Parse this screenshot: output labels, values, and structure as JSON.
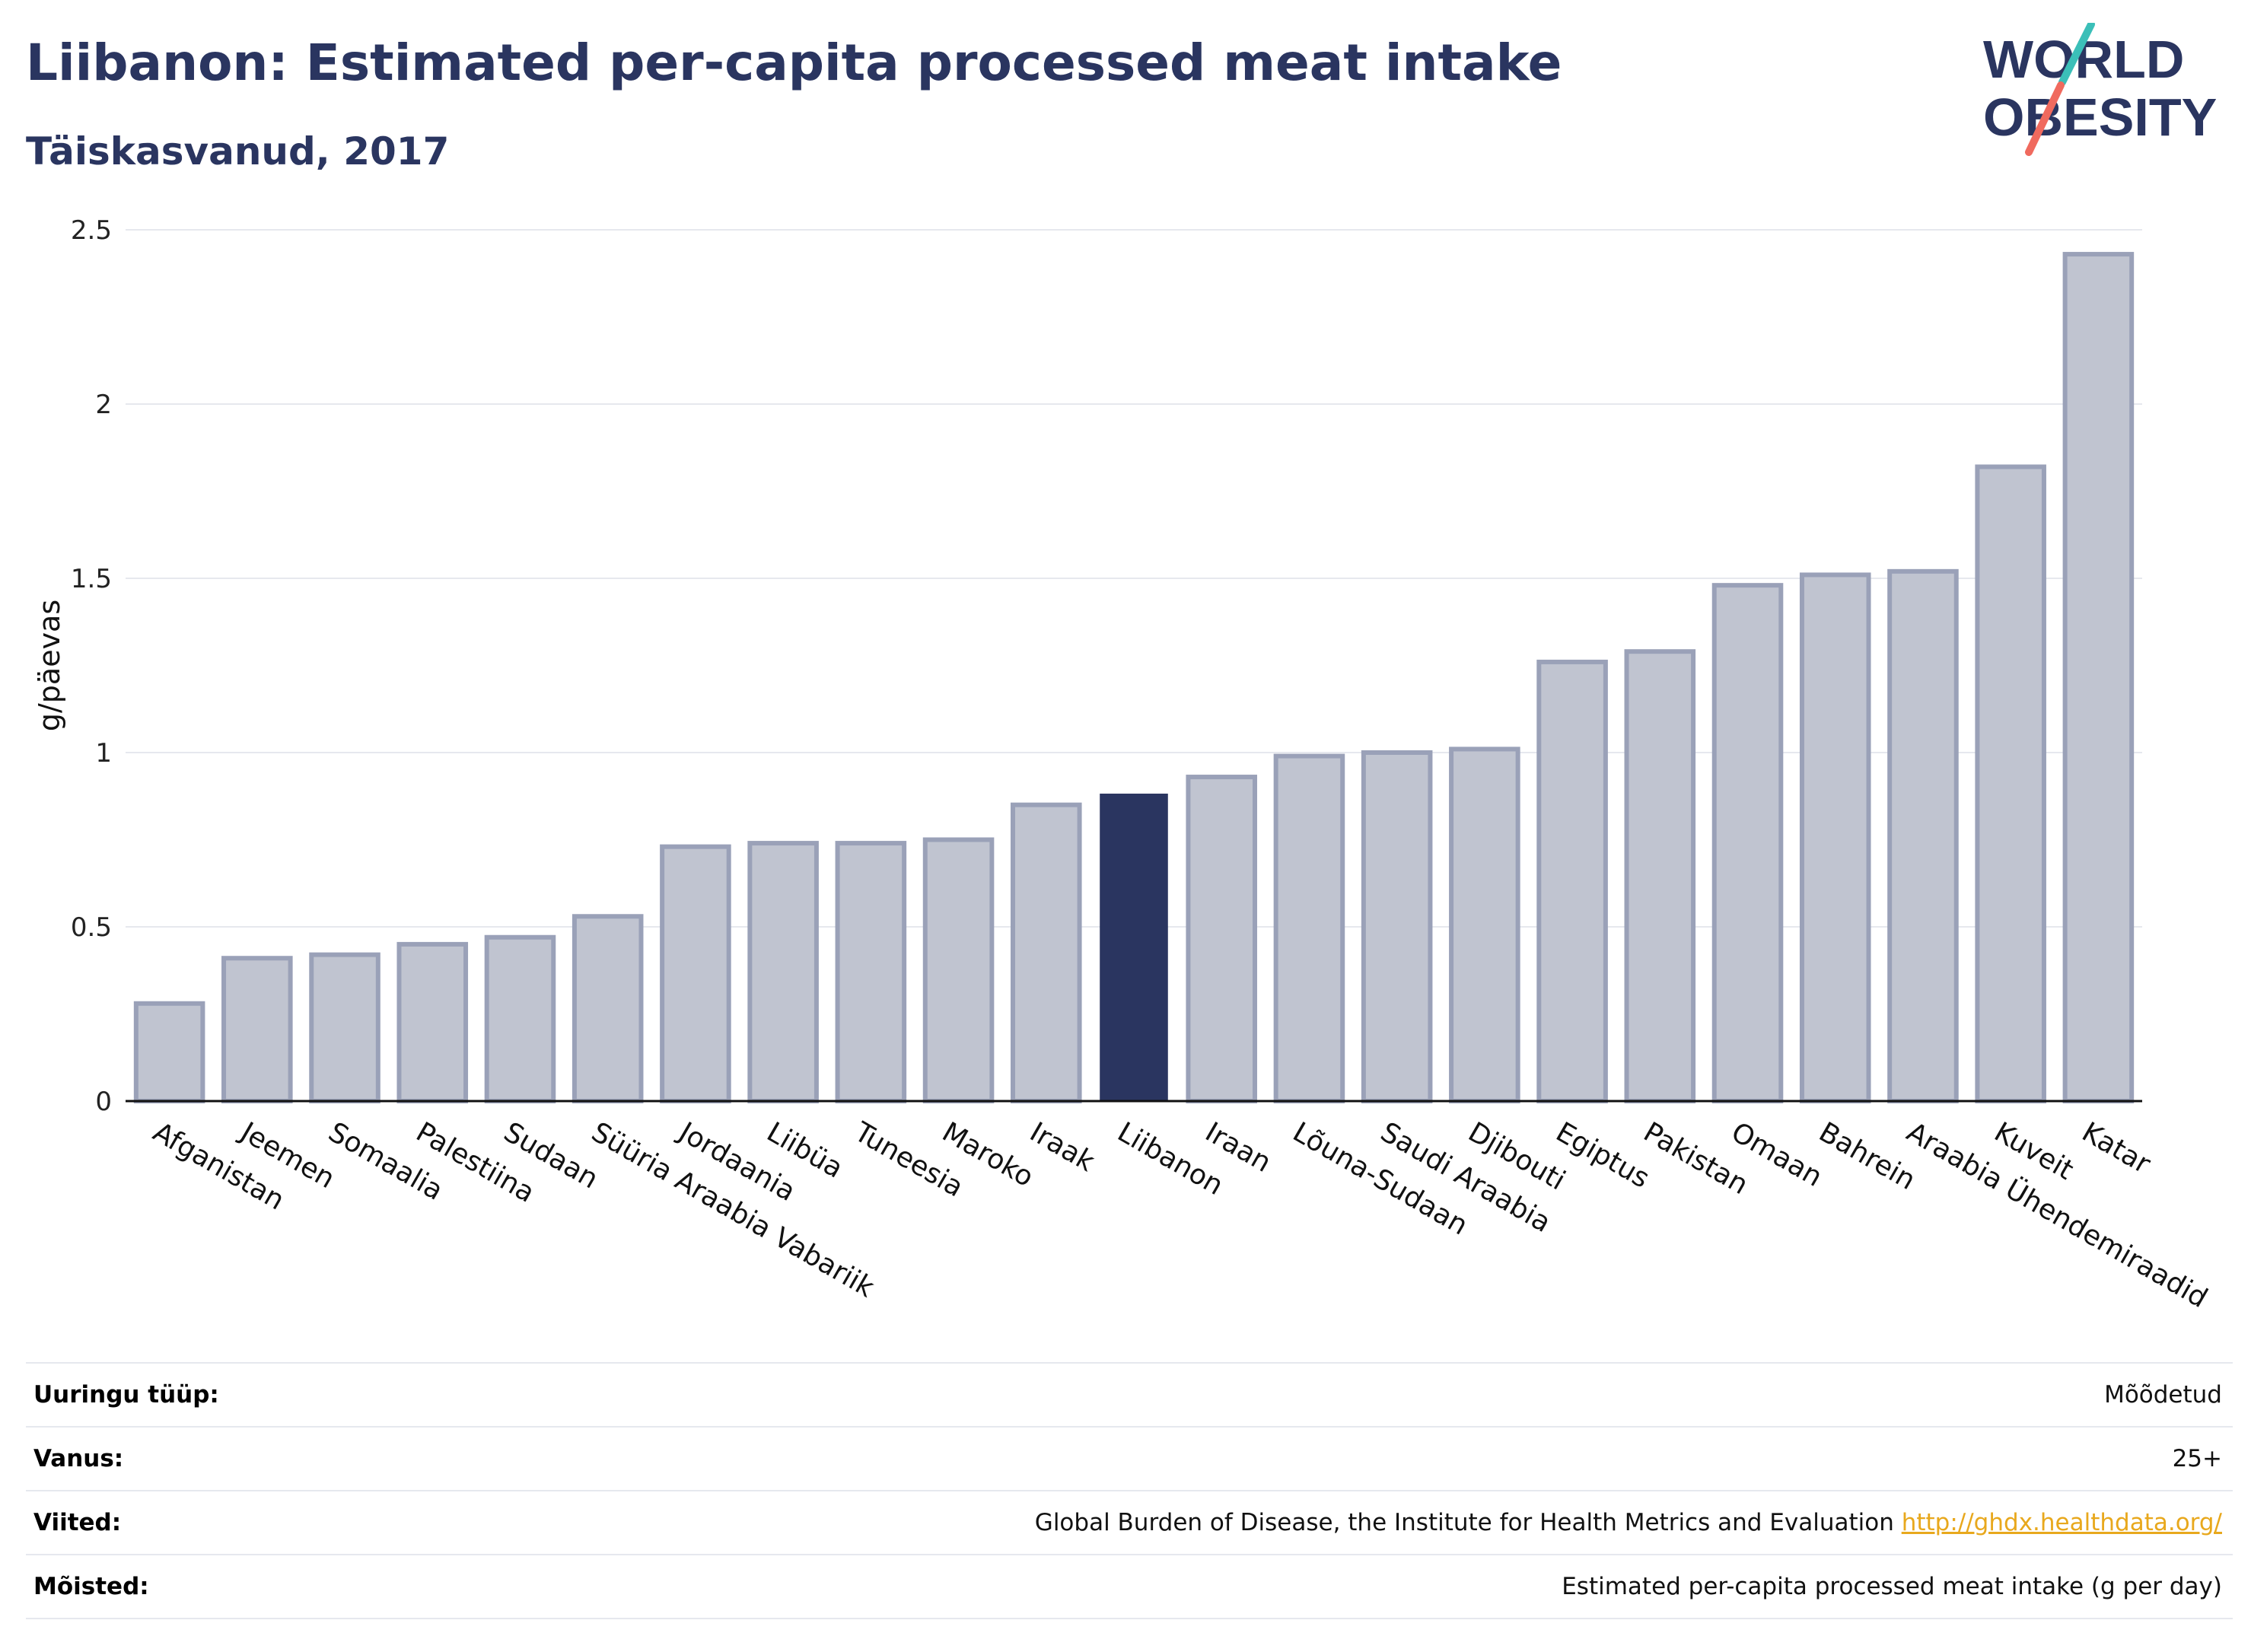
{
  "header": {
    "title": "Liibanon: Estimated per-capita processed meat intake",
    "subtitle": "Täiskasvanud, 2017"
  },
  "logo": {
    "line1": "WORLD",
    "line2": "OBESITY",
    "colors": {
      "text": "#2a3560",
      "teal": "#3bbfb8",
      "coral": "#f06a5e"
    }
  },
  "chart_data": {
    "type": "bar",
    "ylabel": "g/päevas",
    "ylim": [
      0,
      2.5
    ],
    "yticks": [
      0,
      0.5,
      1,
      1.5,
      2,
      2.5
    ],
    "yticklabels": [
      "0",
      "0.5",
      "1",
      "1.5",
      "2",
      "2.5"
    ],
    "grid": true,
    "highlight": "Liibanon",
    "colors": {
      "bar": "#c0c4d0",
      "bar_edge": "#9aa1b8",
      "highlight": "#2a3560"
    },
    "categories": [
      "Afganistan",
      "Jeemen",
      "Somaalia",
      "Palestiina",
      "Sudaan",
      "Süüria Araabia Vabariik",
      "Jordaania",
      "Liibüa",
      "Tuneesia",
      "Maroko",
      "Iraak",
      "Liibanon",
      "Iraan",
      "Lõuna-Sudaan",
      "Saudi Araabia",
      "Djibouti",
      "Egiptus",
      "Pakistan",
      "Omaan",
      "Bahrein",
      "Araabia Ühendemiraadid",
      "Kuveit",
      "Katar"
    ],
    "values": [
      0.28,
      0.41,
      0.42,
      0.45,
      0.47,
      0.53,
      0.73,
      0.74,
      0.74,
      0.75,
      0.85,
      0.88,
      0.93,
      0.99,
      1.0,
      1.01,
      1.26,
      1.29,
      1.48,
      1.51,
      1.52,
      1.82,
      2.43
    ]
  },
  "info": {
    "rows": [
      {
        "key": "Uuringu tüüp:",
        "value": "Mõõdetud"
      },
      {
        "key": "Vanus:",
        "value": "25+"
      },
      {
        "key": "Viited:",
        "value": "Global Burden of Disease, the Institute for Health Metrics and Evaluation",
        "link": "http://ghdx.healthdata.org/"
      },
      {
        "key": "Mõisted:",
        "value": "Estimated per-capita processed meat intake (g per day)"
      }
    ]
  }
}
